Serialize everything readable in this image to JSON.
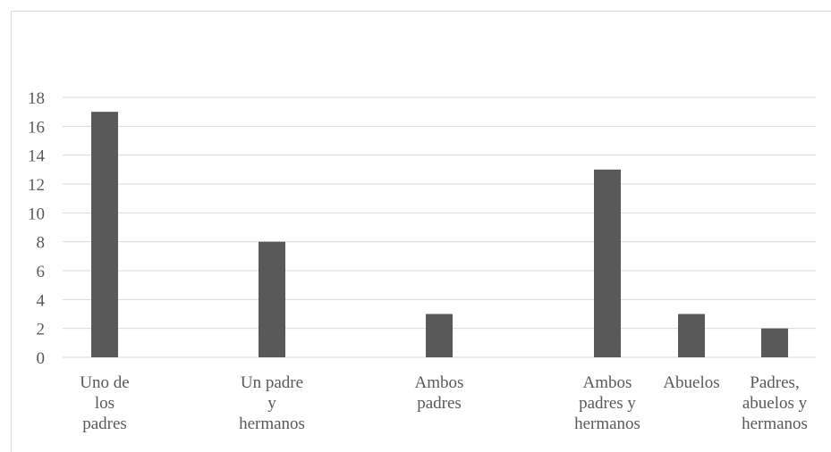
{
  "chart_data": {
    "type": "bar",
    "categories": [
      [
        "Uno de",
        "los",
        "padres"
      ],
      [
        "Un padre",
        "y",
        "hermanos"
      ],
      [
        "Ambos",
        "padres"
      ],
      [
        "Ambos",
        "padres y",
        "hermanos"
      ],
      [
        "Abuelos"
      ],
      [
        "Padres,",
        "abuelos y",
        "hermanos"
      ]
    ],
    "values": [
      17,
      8,
      3,
      13,
      3,
      2
    ],
    "title": "",
    "xlabel": "",
    "ylabel": "",
    "ylim": [
      0,
      18
    ],
    "yticks": [
      "0",
      "2",
      "4",
      "6",
      "8",
      "10",
      "12",
      "14",
      "16",
      "18"
    ],
    "grid": true,
    "legend": "none",
    "bar_color": "#595959",
    "grid_color": "#d9d9d9",
    "text_color": "#595959"
  }
}
